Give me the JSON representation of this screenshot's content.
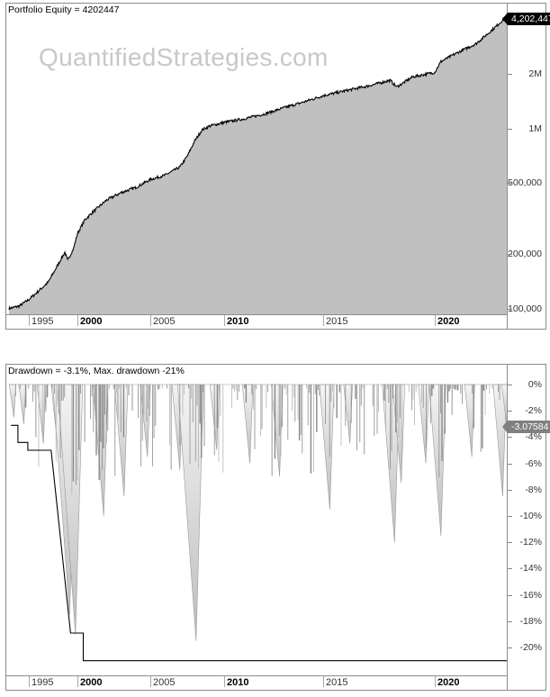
{
  "equity_panel": {
    "title": "Portfolio Equity = 4202447",
    "watermark": "QuantifiedStrategies.com",
    "last_value_tag": "4,202,447",
    "y_labels": [
      {
        "label": "2M",
        "value": 2000000
      },
      {
        "label": "1M",
        "value": 1000000
      },
      {
        "label": "500,000",
        "value": 500000
      },
      {
        "label": "200,000",
        "value": 200000
      },
      {
        "label": "100,000",
        "value": 100000
      }
    ]
  },
  "drawdown_panel": {
    "title": "Drawdown = -3.1%, Max. drawdown -21%",
    "last_value_tag": "-3.07584",
    "y_labels": [
      "0%",
      "-2%",
      "-4%",
      "-6%",
      "-8%",
      "-10%",
      "-12%",
      "-14%",
      "-16%",
      "-18%",
      "-20%"
    ]
  },
  "x_axis": {
    "ticks": [
      {
        "label": "1995",
        "major": false
      },
      {
        "label": "2000",
        "major": true
      },
      {
        "label": "2005",
        "major": false
      },
      {
        "label": "2010",
        "major": true
      },
      {
        "label": "2015",
        "major": false
      },
      {
        "label": "2020",
        "major": true
      }
    ]
  },
  "colors": {
    "fill": "#c0c0c0",
    "line": "#000000",
    "drawdown_bar": "#888888",
    "tag_equity": "#000000",
    "tag_drawdown": "#808080"
  },
  "chart_data": [
    {
      "type": "area",
      "title": "Portfolio Equity = 4202447",
      "xlabel": "",
      "ylabel": "",
      "y_scale": "log",
      "ylim": [
        95000,
        4500000
      ],
      "xlim": [
        1993.0,
        2023.5
      ],
      "x": [
        1993.0,
        1994.0,
        1995.0,
        1996.0,
        1997.0,
        1998.0,
        1998.7,
        1999.0,
        1999.6,
        2000.0,
        2000.5,
        2001.0,
        2002.0,
        2003.0,
        2004.0,
        2005.0,
        2006.0,
        2007.0,
        2007.5,
        2008.0,
        2008.5,
        2009.0,
        2010.0,
        2011.0,
        2012.0,
        2013.0,
        2014.0,
        2015.0,
        2016.0,
        2017.0,
        2018.0,
        2018.3,
        2019.0,
        2020.0,
        2020.3,
        2021.0,
        2022.0,
        2023.0,
        2023.5
      ],
      "values": [
        100000,
        103000,
        112000,
        125000,
        140000,
        175000,
        205000,
        185000,
        215000,
        260000,
        310000,
        340000,
        400000,
        440000,
        470000,
        520000,
        550000,
        610000,
        700000,
        850000,
        980000,
        1030000,
        1080000,
        1130000,
        1200000,
        1300000,
        1400000,
        1520000,
        1620000,
        1720000,
        1850000,
        1700000,
        1930000,
        2050000,
        2350000,
        2600000,
        2950000,
        3700000,
        4202447
      ]
    },
    {
      "type": "area",
      "title": "Drawdown = -3.1%, Max. drawdown -21%",
      "xlabel": "",
      "ylabel": "",
      "ylim": [
        -21.5,
        0.5
      ],
      "xlim": [
        1993.0,
        2023.5
      ],
      "x": [
        1993.5,
        1994.5,
        1996.5,
        1998.0,
        1999.2,
        1999.8,
        2001.8,
        2003.2,
        2004.8,
        2007.0,
        2008.1,
        2009.5,
        2011.3,
        2012.8,
        2015.3,
        2016.2,
        2018.2,
        2018.5,
        2019.6,
        2020.3,
        2021.8,
        2023.3,
        2023.5
      ],
      "values": [
        -2.5,
        -3.0,
        -4.5,
        -5.0,
        -17.5,
        -19.0,
        -10.0,
        -8.5,
        -5.5,
        -6.5,
        -19.5,
        -5.0,
        -6.0,
        -7.0,
        -9.5,
        -4.5,
        -12.0,
        -7.5,
        -6.0,
        -11.5,
        -5.5,
        -8.5,
        -3.1
      ],
      "max_drawdown_line": [
        {
          "from": 1993.2,
          "to": 1993.9,
          "value": -3.1
        },
        {
          "from": 1993.9,
          "to": 1994.9,
          "value": -4.4
        },
        {
          "from": 1994.9,
          "to": 1997.3,
          "value": -5.0
        },
        {
          "from": 1999.3,
          "to": 2000.4,
          "value": -18.9
        },
        {
          "from": 2000.4,
          "to": 2023.5,
          "value": -21.0
        }
      ]
    }
  ]
}
